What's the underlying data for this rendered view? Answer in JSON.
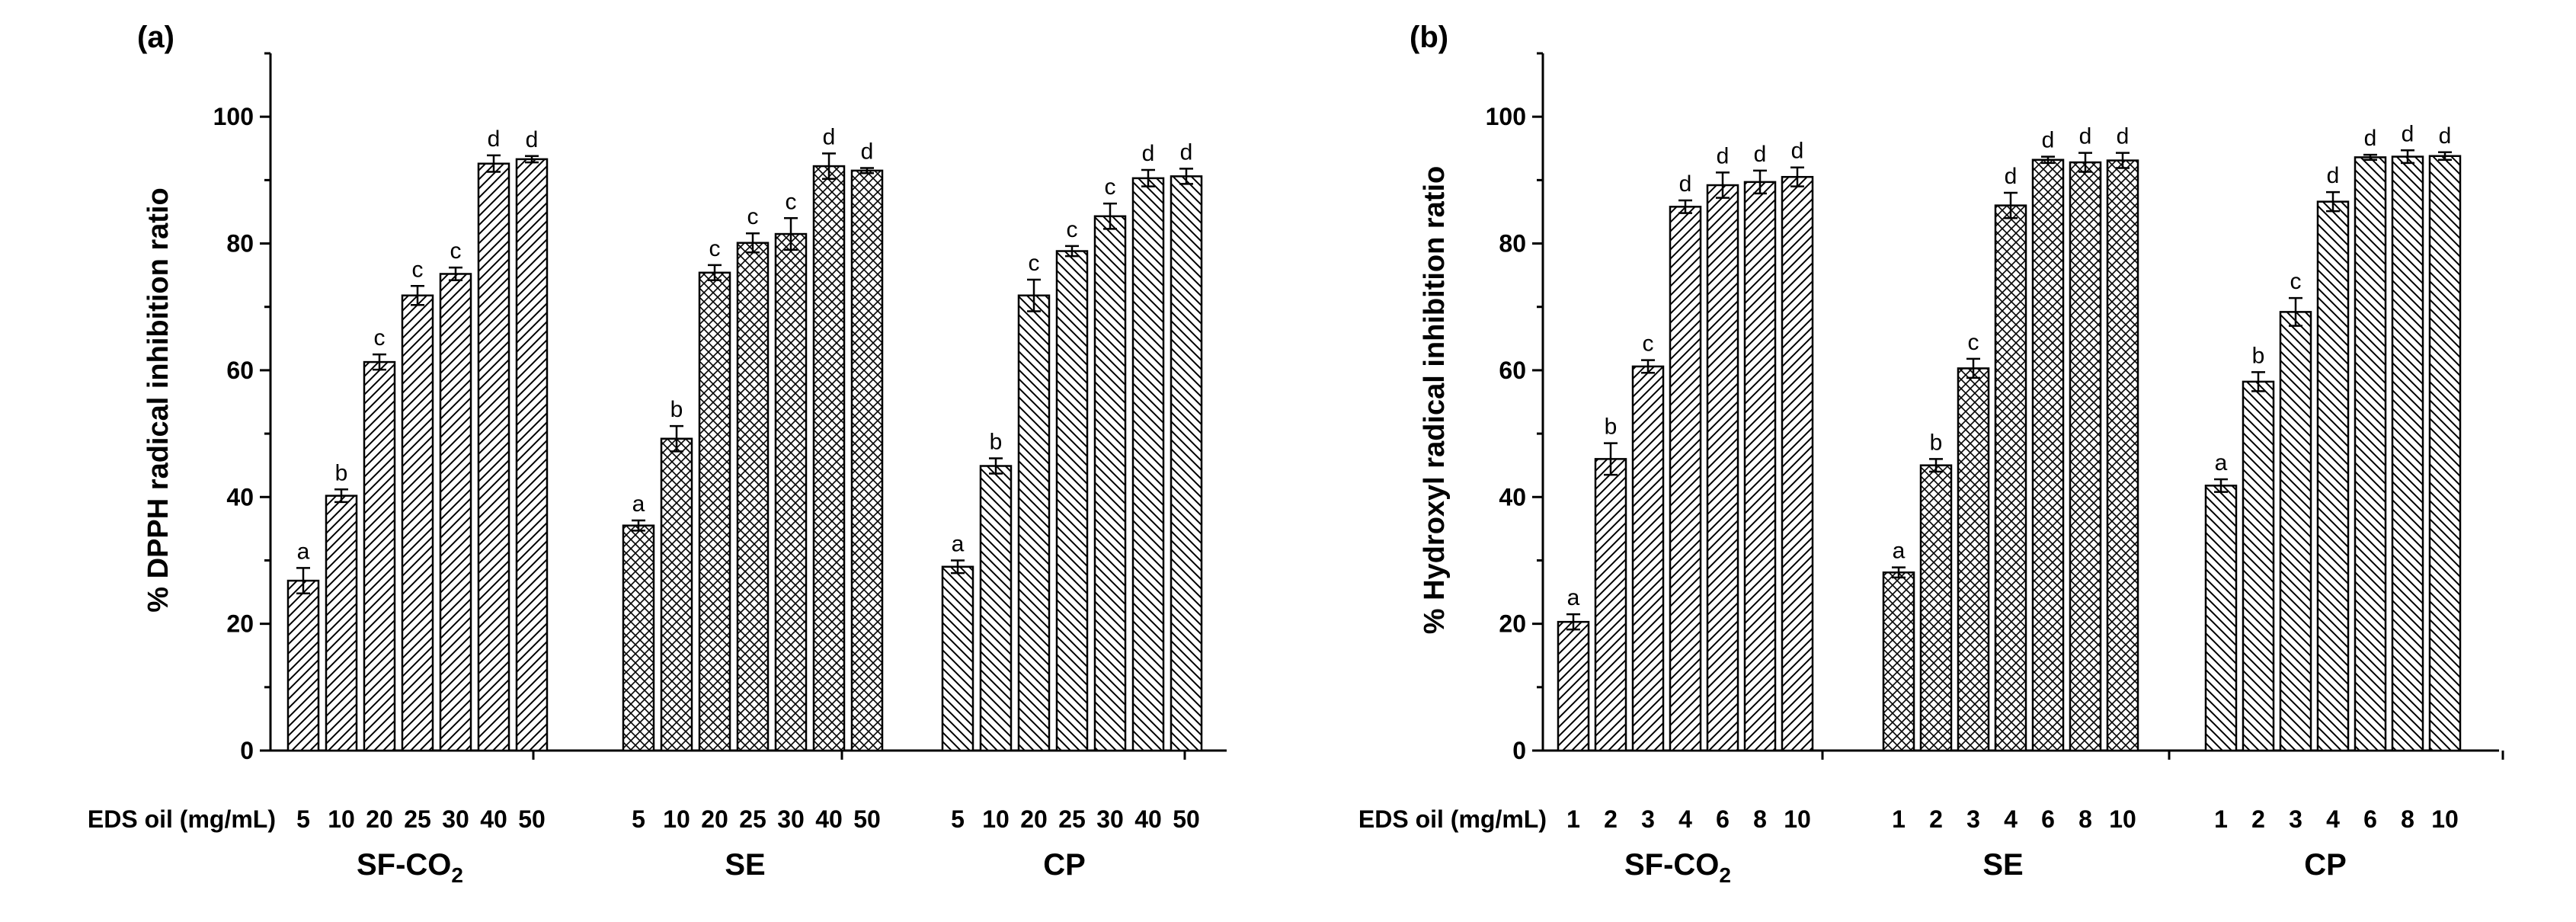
{
  "chart_data": [
    {
      "type": "bar",
      "panel_label": "(a)",
      "ylabel": "% DPPH radical inhibition ratio",
      "ylim": [
        0,
        110
      ],
      "yticks": [
        "0",
        "20",
        "40",
        "60",
        "80",
        "100"
      ],
      "xlabel_prefix": "EDS oil (mg/mL)",
      "groups": [
        {
          "name": "SF-CO",
          "sub": "2",
          "pattern": "diag",
          "categories": [
            "5",
            "10",
            "20",
            "25",
            "30",
            "40",
            "50"
          ],
          "values": [
            26.8,
            40.2,
            61.3,
            71.8,
            75.2,
            92.6,
            93.3
          ],
          "errors": [
            2.0,
            1.0,
            1.2,
            1.5,
            1.0,
            1.3,
            0.5
          ],
          "letters": [
            "a",
            "b",
            "c",
            "c",
            "c",
            "d",
            "d"
          ]
        },
        {
          "name": "SE",
          "sub": "",
          "pattern": "cross",
          "categories": [
            "5",
            "10",
            "20",
            "25",
            "30",
            "40",
            "50"
          ],
          "values": [
            35.5,
            49.2,
            75.4,
            80.1,
            81.5,
            92.2,
            91.5
          ],
          "errors": [
            0.8,
            2.0,
            1.2,
            1.5,
            2.5,
            2.0,
            0.4
          ],
          "letters": [
            "a",
            "b",
            "c",
            "c",
            "c",
            "d",
            "d"
          ]
        },
        {
          "name": "CP",
          "sub": "",
          "pattern": "back",
          "categories": [
            "5",
            "10",
            "20",
            "25",
            "30",
            "40",
            "50"
          ],
          "values": [
            29.0,
            44.9,
            71.8,
            78.8,
            84.3,
            90.3,
            90.6
          ],
          "errors": [
            1.0,
            1.2,
            2.5,
            0.8,
            2.0,
            1.3,
            1.2
          ],
          "letters": [
            "a",
            "b",
            "c",
            "c",
            "c",
            "d",
            "d"
          ]
        }
      ]
    },
    {
      "type": "bar",
      "panel_label": "(b)",
      "ylabel": "% Hydroxyl radical inhibition ratio",
      "ylim": [
        0,
        110
      ],
      "yticks": [
        "0",
        "20",
        "40",
        "60",
        "80",
        "100"
      ],
      "xlabel_prefix": "EDS oil (mg/mL)",
      "groups": [
        {
          "name": "SF-CO",
          "sub": "2",
          "pattern": "diag",
          "categories": [
            "1",
            "2",
            "3",
            "4",
            "6",
            "8",
            "10"
          ],
          "values": [
            20.3,
            46.0,
            60.6,
            85.8,
            89.2,
            89.7,
            90.5
          ],
          "errors": [
            1.2,
            2.5,
            1.0,
            1.0,
            2.0,
            1.8,
            1.5
          ],
          "letters": [
            "a",
            "b",
            "c",
            "d",
            "d",
            "d",
            "d"
          ]
        },
        {
          "name": "SE",
          "sub": "",
          "pattern": "cross",
          "categories": [
            "1",
            "2",
            "3",
            "4",
            "6",
            "8",
            "10"
          ],
          "values": [
            28.1,
            45.0,
            60.3,
            86.0,
            93.2,
            92.8,
            93.1
          ],
          "errors": [
            0.8,
            1.0,
            1.5,
            2.0,
            0.5,
            1.5,
            1.2
          ],
          "letters": [
            "a",
            "b",
            "c",
            "d",
            "d",
            "d",
            "d"
          ]
        },
        {
          "name": "CP",
          "sub": "",
          "pattern": "back",
          "categories": [
            "1",
            "2",
            "3",
            "4",
            "6",
            "8",
            "10"
          ],
          "values": [
            41.8,
            58.2,
            69.2,
            86.6,
            93.6,
            93.7,
            93.8
          ],
          "errors": [
            1.0,
            1.5,
            2.2,
            1.5,
            0.4,
            1.0,
            0.6
          ],
          "letters": [
            "a",
            "b",
            "c",
            "d",
            "d",
            "d",
            "d"
          ]
        }
      ]
    }
  ]
}
